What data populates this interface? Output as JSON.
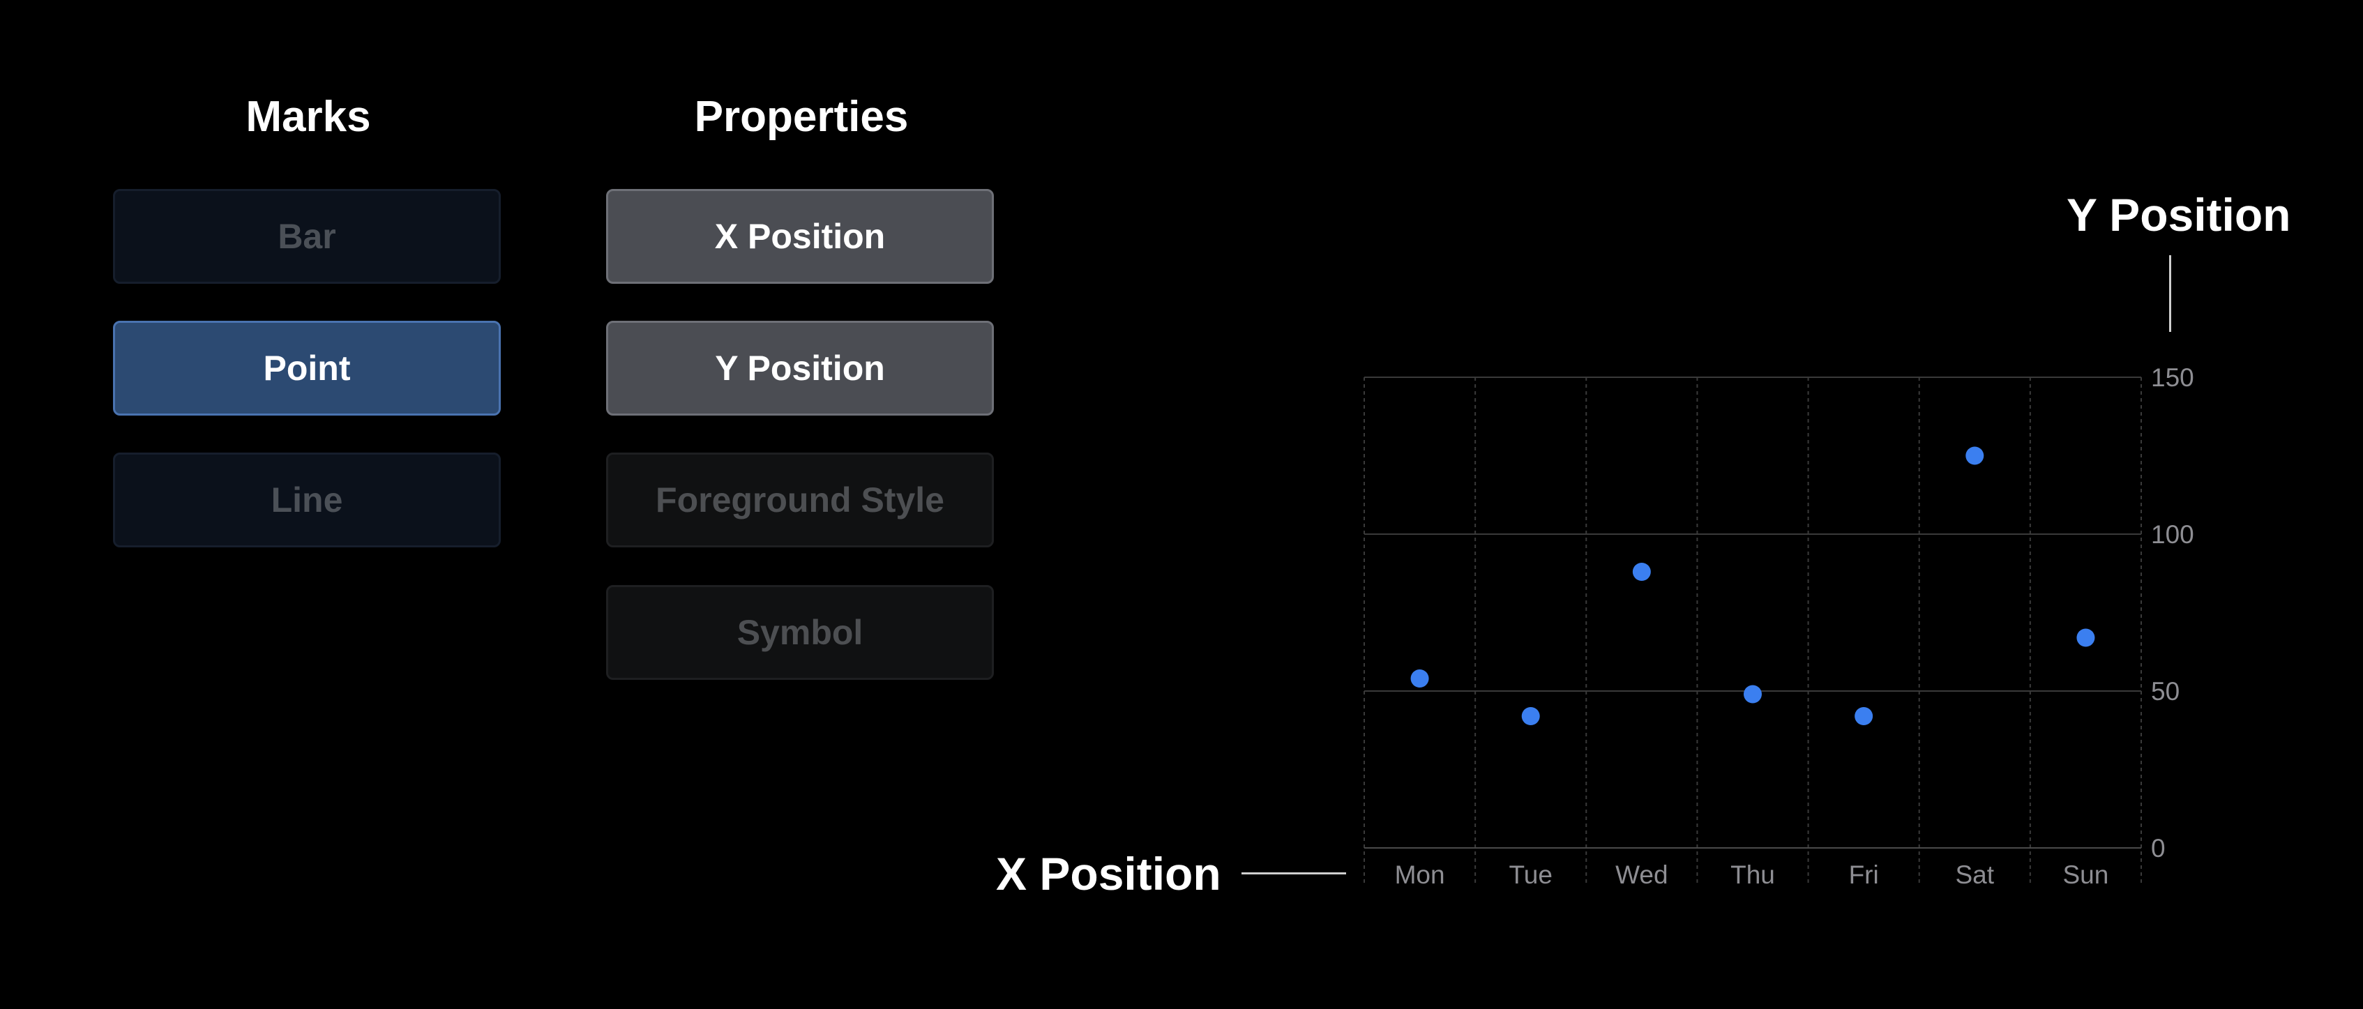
{
  "marks": {
    "title": "Marks",
    "items": [
      {
        "label": "Bar",
        "state": "dim"
      },
      {
        "label": "Point",
        "state": "active"
      },
      {
        "label": "Line",
        "state": "dim"
      }
    ]
  },
  "properties": {
    "title": "Properties",
    "items": [
      {
        "label": "X Position",
        "state": "active"
      },
      {
        "label": "Y Position",
        "state": "active"
      },
      {
        "label": "Foreground Style",
        "state": "dim"
      },
      {
        "label": "Symbol",
        "state": "dim"
      }
    ]
  },
  "callouts": {
    "x": "X Position",
    "y": "Y Position"
  },
  "colors": {
    "point": "#3b7ff0",
    "grid": "#3a3a3a",
    "axis_text": "#8e8e93"
  },
  "chart_data": {
    "type": "scatter",
    "categories": [
      "Mon",
      "Tue",
      "Wed",
      "Thu",
      "Fri",
      "Sat",
      "Sun"
    ],
    "values": [
      54,
      42,
      88,
      49,
      42,
      125,
      67
    ],
    "ylim": [
      0,
      150
    ],
    "yticks": [
      0,
      50,
      100,
      150
    ],
    "grid": true,
    "xlabel": "",
    "ylabel": ""
  }
}
